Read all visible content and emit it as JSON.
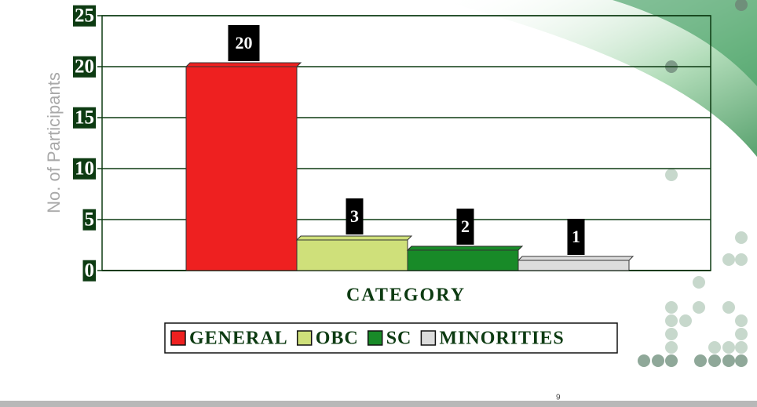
{
  "page_number": "9",
  "chart_data": {
    "type": "bar",
    "x_label": "CATEGORY",
    "y_label": "No. of Participants",
    "series": [
      {
        "name": "GENERAL",
        "color": "#ee2020",
        "values": [
          20
        ]
      },
      {
        "name": "OBC",
        "color": "#cfe07a",
        "values": [
          3
        ]
      },
      {
        "name": "SC",
        "color": "#188a28",
        "values": [
          2
        ]
      },
      {
        "name": "MINORITIES",
        "color": "#dcdcdc",
        "values": [
          1
        ]
      }
    ],
    "ylim": [
      0,
      25
    ],
    "yticks": [
      0,
      5,
      10,
      15,
      20,
      25
    ],
    "grid": true,
    "legend": "bottom"
  }
}
